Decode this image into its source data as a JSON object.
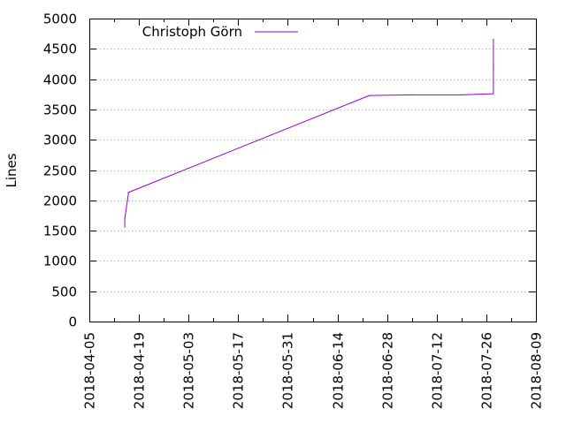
{
  "chart_data": {
    "type": "line",
    "title": "",
    "xlabel": "",
    "ylabel": "Lines",
    "x_axis": {
      "kind": "date",
      "range": [
        "2018-04-05",
        "2018-08-09"
      ],
      "tick_labels": [
        "2018-04-05",
        "2018-04-19",
        "2018-05-03",
        "2018-05-17",
        "2018-05-31",
        "2018-06-14",
        "2018-06-28",
        "2018-07-12",
        "2018-07-26",
        "2018-08-09"
      ]
    },
    "y_axis": {
      "range": [
        0,
        5000
      ],
      "tick_labels": [
        "0",
        "500",
        "1000",
        "1500",
        "2000",
        "2500",
        "3000",
        "3500",
        "4000",
        "4500",
        "5000"
      ]
    },
    "grid": true,
    "legend_position": "top-left",
    "series": [
      {
        "name": "Christoph Görn",
        "color": "#9400d3",
        "points": [
          {
            "x": "2018-04-15",
            "y": 1560
          },
          {
            "x": "2018-04-15",
            "y": 1700
          },
          {
            "x": "2018-04-16",
            "y": 2100
          },
          {
            "x": "2018-04-16",
            "y": 2130
          },
          {
            "x": "2018-06-23",
            "y": 3730
          },
          {
            "x": "2018-07-05",
            "y": 3740
          },
          {
            "x": "2018-07-19",
            "y": 3740
          },
          {
            "x": "2018-07-28",
            "y": 3760
          },
          {
            "x": "2018-07-28",
            "y": 4200
          },
          {
            "x": "2018-07-28",
            "y": 4660
          }
        ]
      }
    ]
  }
}
